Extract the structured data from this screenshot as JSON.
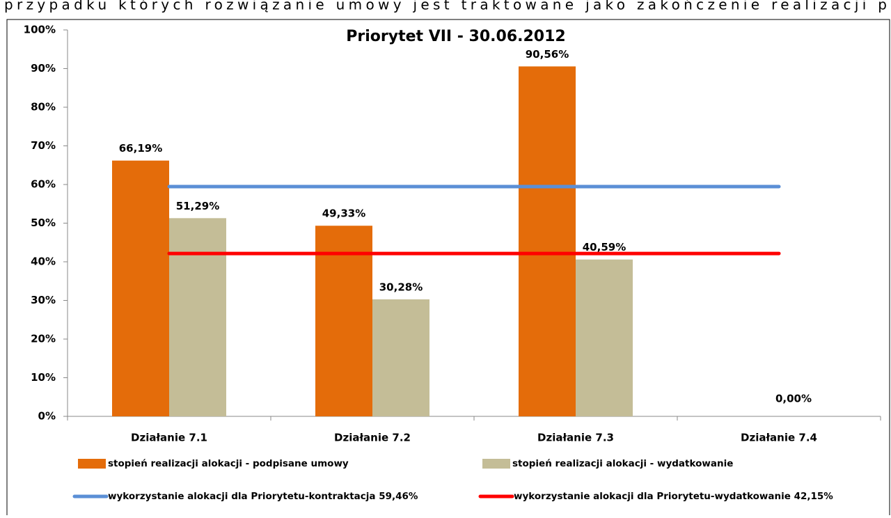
{
  "document": {
    "text": "przypadku których rozwiązanie umowy jest traktowane jako zakończenie realizacji p"
  },
  "chart_data": {
    "type": "bar",
    "title": "Priorytet VII - 30.06.2012",
    "categories": [
      "Działanie  7.1",
      "Działanie  7.2",
      "Działanie  7.3",
      "Działanie  7.4"
    ],
    "series": [
      {
        "name": "stopień realizacji alokacji - podpisane umowy",
        "type": "bar",
        "color": "#e46c0a",
        "values": [
          66.19,
          49.33,
          90.56,
          null
        ],
        "value_labels": [
          "66,19%",
          "49,33%",
          "90,56%",
          null
        ]
      },
      {
        "name": "stopień realizacji alokacji - wydatkowanie",
        "type": "bar",
        "color": "#c4bd97",
        "values": [
          51.29,
          30.28,
          40.59,
          0
        ],
        "value_labels": [
          "51,29%",
          "30,28%",
          "40,59%",
          "0,00%"
        ]
      },
      {
        "name": "wykorzystanie alokacji dla Priorytetu-kontraktacja  59,46%",
        "type": "line",
        "color": "#5b8fd6",
        "values": [
          59.46,
          59.46,
          59.46,
          59.46
        ]
      },
      {
        "name": "wykorzystanie alokacji dla Priorytetu-wydatkowanie  42,15%",
        "type": "line",
        "color": "#ff0000",
        "values": [
          42.15,
          42.15,
          42.15,
          42.15
        ]
      }
    ],
    "ylim": [
      0,
      100
    ],
    "yticks": [
      {
        "value": 0,
        "label": "0%"
      },
      {
        "value": 10,
        "label": "10%"
      },
      {
        "value": 20,
        "label": "20%"
      },
      {
        "value": 30,
        "label": "30%"
      },
      {
        "value": 40,
        "label": "40%"
      },
      {
        "value": 50,
        "label": "50%"
      },
      {
        "value": 60,
        "label": "60%"
      },
      {
        "value": 70,
        "label": "70%"
      },
      {
        "value": 80,
        "label": "80%"
      },
      {
        "value": 90,
        "label": "90%"
      },
      {
        "value": 100,
        "label": "100%"
      }
    ],
    "grid": false
  }
}
